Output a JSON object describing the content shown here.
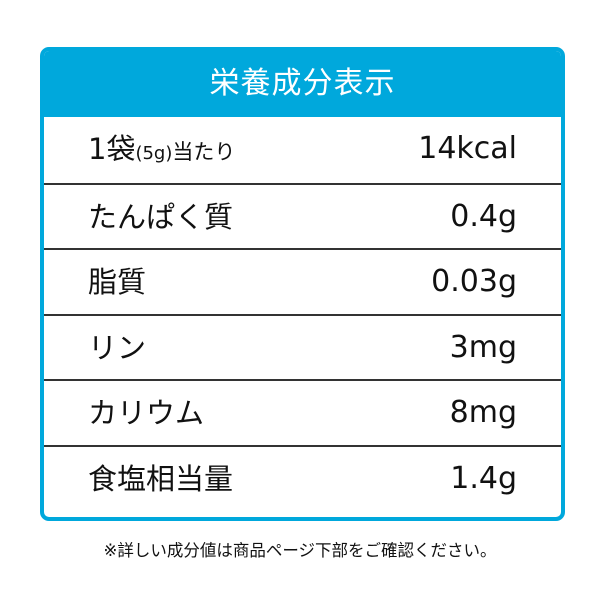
{
  "header": {
    "title": "栄養成分表示"
  },
  "serving": {
    "prefix": "1袋",
    "amount": "(5g)",
    "suffix": "当たり",
    "value": "14kcal"
  },
  "rows": [
    {
      "label": "たんぱく質",
      "value": "0.4g"
    },
    {
      "label": "脂質",
      "value": "0.03g"
    },
    {
      "label": "リン",
      "value": "3mg"
    },
    {
      "label": "カリウム",
      "value": "8mg"
    },
    {
      "label": "食塩相当量",
      "value": "1.4g"
    }
  ],
  "footnote": "※詳しい成分値は商品ページ下部をご確認ください。",
  "colors": {
    "accent": "#00a8dc",
    "divider": "#333333"
  }
}
